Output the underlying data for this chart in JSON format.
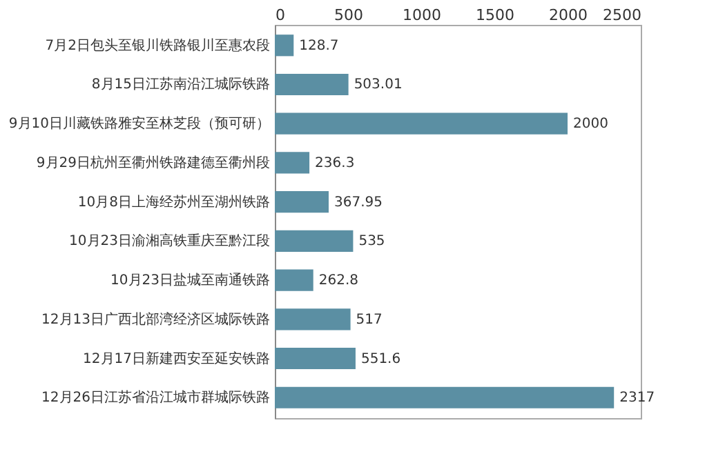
{
  "chart_data": {
    "type": "bar",
    "orientation": "horizontal",
    "categories": [
      "7月2日包头至银川铁路银川至惠农段",
      "8月15日江苏南沿江城际铁路",
      "9月10日川藏铁路雅安至林芝段（预可研）",
      "9月29日杭州至衢州铁路建德至衢州段",
      "10月8日上海经苏州至湖州铁路",
      "10月23日渝湘高铁重庆至黔江段",
      "10月23日盐城至南通铁路",
      "12月13日广西北部湾经济区城际铁路",
      "12月17日新建西安至延安铁路",
      "12月26日江苏省沿江城市群城际铁路"
    ],
    "values": [
      128.7,
      503.01,
      2000,
      236.3,
      367.95,
      535,
      262.8,
      517,
      551.6,
      2317
    ],
    "color": "#5b8fa3",
    "xlim": [
      0,
      2500
    ],
    "xticks": [
      0,
      500,
      1000,
      1500,
      2000,
      2500
    ],
    "data_labels": true,
    "grid": false
  }
}
